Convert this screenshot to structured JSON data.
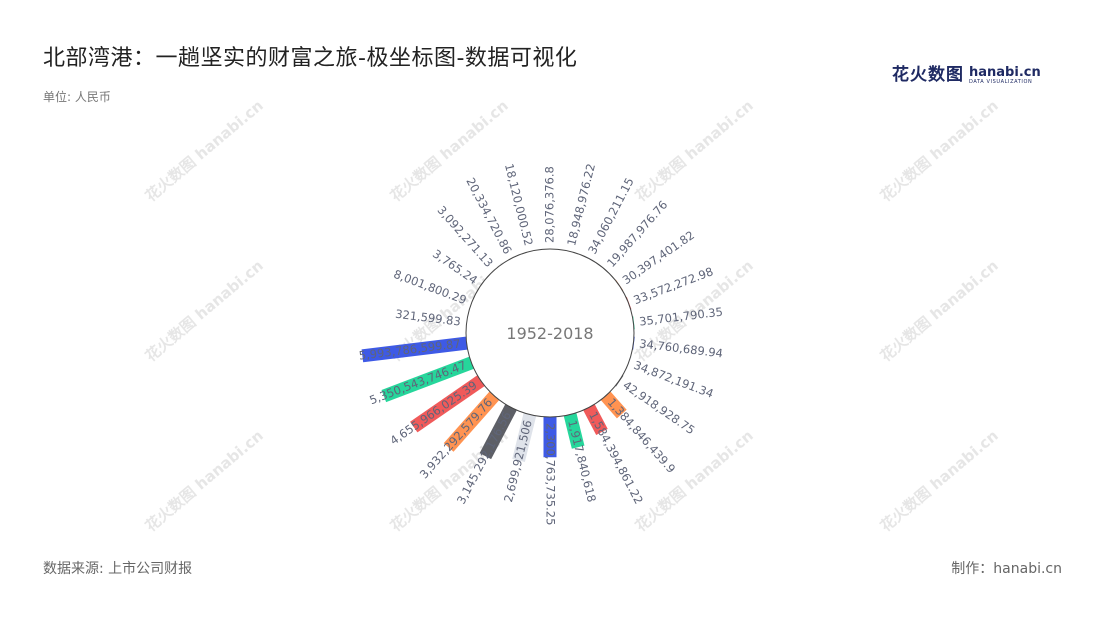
{
  "title": "北部湾港：一趟坚实的财富之旅-极坐标图-数据可视化",
  "unit": "单位: 人民币",
  "source": "数据来源: 上市公司财报",
  "credit": "制作：hanabi.cn",
  "logo": {
    "cn": "花火数图",
    "en": "hanabi.cn",
    "sub": "DATA VISUALIZATION"
  },
  "watermark_text": "花火数图 hanabi.cn",
  "chart_data": {
    "type": "bar",
    "layout": "polar-radial",
    "center_label": "1952-2018",
    "colors": [
      "#26d69b",
      "#3e5ae6",
      "#dfe3ea",
      "#5d5f66",
      "#ff9351",
      "#f05a5a"
    ],
    "categories": [
      "1952-2018"
    ],
    "values": [
      {
        "value": 28076376.8,
        "label": "28,076,376.8"
      },
      {
        "value": 18948976.22,
        "label": "18,948,976.22"
      },
      {
        "value": 34060211.15,
        "label": "34,060,211.15"
      },
      {
        "value": 19987976.76,
        "label": "19,987,976.76"
      },
      {
        "value": 30397401.82,
        "label": "30,397,401.82"
      },
      {
        "value": 33572272.98,
        "label": "33,572,272.98"
      },
      {
        "value": 35701790.35,
        "label": "35,701,790.35"
      },
      {
        "value": 34760689.94,
        "label": "34,760,689.94"
      },
      {
        "value": 34872191.34,
        "label": "34,872,191.34"
      },
      {
        "value": 42918928.75,
        "label": "42,918,928.75"
      },
      {
        "value": 1384846439.9,
        "label": "1,384,846,439.9"
      },
      {
        "value": 1584394861.22,
        "label": "1,584,394,861.22"
      },
      {
        "value": 1917840618,
        "label": "1,917,840,618"
      },
      {
        "value": 2300763735.25,
        "label": "2,300,763,735.25"
      },
      {
        "value": 2699921506,
        "label": "2,699,921,506"
      },
      {
        "value": 3145292176.56,
        "label": "3,145,292,176.56"
      },
      {
        "value": 3932292579.76,
        "label": "3,932,292,579.76"
      },
      {
        "value": 4655966025.39,
        "label": "4,655,966,025.39"
      },
      {
        "value": 5350543746.47,
        "label": "5,350,543,746.47"
      },
      {
        "value": 5993786599.87,
        "label": "5,993,786,599.87"
      },
      {
        "value": 321599.83,
        "label": "321,599.83"
      },
      {
        "value": 8001800.29,
        "label": "8,001,800.29"
      },
      {
        "value": 3765.24,
        "label": "3,765.24"
      },
      {
        "value": 3092271.13,
        "label": "3,092,271.13"
      },
      {
        "value": 20334720.86,
        "label": "20,334,720.86"
      },
      {
        "value": 18120000.52,
        "label": "18,120,000.52"
      }
    ]
  }
}
